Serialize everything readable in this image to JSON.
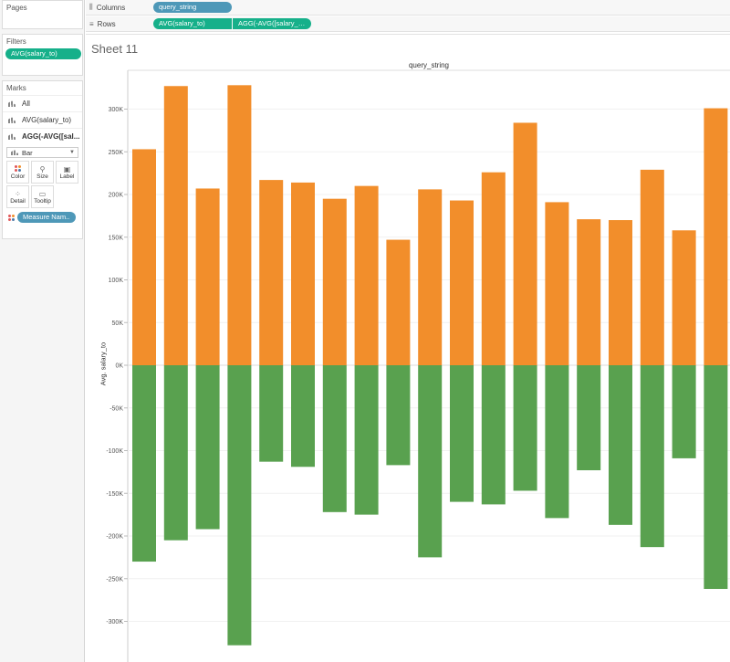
{
  "pages_card": {
    "title": "Pages"
  },
  "filters_card": {
    "title": "Filters",
    "pill": "AVG(salary_to)"
  },
  "marks_card": {
    "title": "Marks",
    "items": [
      {
        "label": "All"
      },
      {
        "label": "AVG(salary_to)"
      },
      {
        "label": "AGG(-AVG([sal..."
      }
    ],
    "mark_type": "Bar",
    "buttons": [
      {
        "label": "Color",
        "icon": "color-dots-icon"
      },
      {
        "label": "Size",
        "icon": "size-icon"
      },
      {
        "label": "Label",
        "icon": "label-icon"
      },
      {
        "label": "Detail",
        "icon": "detail-icon"
      },
      {
        "label": "Tooltip",
        "icon": "tooltip-icon"
      }
    ],
    "color_pill": "Measure Nam.."
  },
  "shelves": {
    "columns": {
      "label": "Columns",
      "pills": [
        "query_string"
      ]
    },
    "rows": {
      "label": "Rows",
      "pills": [
        "AVG(salary_to)",
        "AGG(-AVG([salary_fr.."
      ]
    }
  },
  "sheet": {
    "title": "Sheet 11"
  },
  "colors": {
    "positive": "#f28e2b",
    "negative": "#59a14f",
    "pill_green": "#16b08a",
    "pill_blue": "#4e98b8"
  },
  "chart_data": {
    "type": "bar",
    "column_header": "query_string",
    "ylabel": "Avg. salary_to",
    "ylim": [
      -340000,
      340000
    ],
    "yticks": [
      300000,
      250000,
      200000,
      150000,
      100000,
      50000,
      0,
      -50000,
      -100000,
      -150000,
      -200000,
      -250000,
      -300000
    ],
    "ytick_labels": [
      "300K",
      "250K",
      "200K",
      "150K",
      "100K",
      "50K",
      "0K",
      "-50K",
      "-100K",
      "-150K",
      "-200K",
      "-250K",
      "-300K"
    ],
    "series": [
      {
        "values": [
          253000,
          327000,
          207000,
          328000,
          217000,
          214000,
          195000,
          210000,
          147000,
          206000,
          193000,
          226000,
          284000,
          191000,
          171000,
          170000,
          229000,
          158000,
          301000
        ]
      },
      {
        "values": [
          -230000,
          -205000,
          -192000,
          -328000,
          -113000,
          -119000,
          -172000,
          -175000,
          -117000,
          -225000,
          -160000,
          -163000,
          -147000,
          -179000,
          -123000,
          -187000,
          -213000,
          -109000,
          -262000
        ]
      }
    ]
  }
}
